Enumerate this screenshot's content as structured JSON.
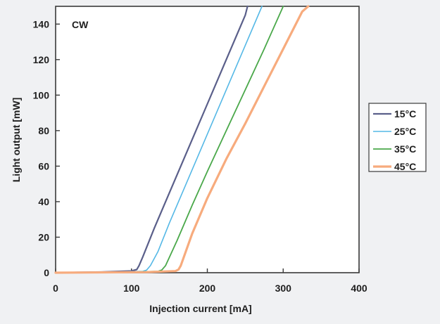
{
  "chart_data": {
    "type": "line",
    "title": "",
    "annotation": "CW",
    "xlabel": "Injection current [mA]",
    "ylabel": "Light output [mW]",
    "xlim": [
      0,
      400
    ],
    "ylim": [
      0,
      150
    ],
    "xticks": [
      "0",
      "100",
      "200",
      "300",
      "400"
    ],
    "yticks": [
      "0",
      "20",
      "40",
      "60",
      "80",
      "100",
      "120",
      "140"
    ],
    "grid": false,
    "legend_position": "right",
    "series": [
      {
        "name": "15°C",
        "color": "#5a5f8a",
        "x": [
          0,
          60,
          100,
          107,
          110,
          115,
          130,
          150,
          175,
          200,
          225,
          250,
          253
        ],
        "y": [
          0,
          0.4,
          1.0,
          1.8,
          4,
          9,
          25,
          45,
          70,
          95,
          120,
          145,
          150
        ]
      },
      {
        "name": "25°C",
        "color": "#55b8e6",
        "x": [
          0,
          80,
          115,
          120,
          125,
          135,
          150,
          175,
          200,
          225,
          250,
          272
        ],
        "y": [
          0,
          0.3,
          0.8,
          1.5,
          4,
          12,
          28,
          53,
          78,
          103,
          128,
          150
        ]
      },
      {
        "name": "35°C",
        "color": "#4aa84a",
        "x": [
          0,
          100,
          135,
          140,
          145,
          160,
          180,
          200,
          225,
          250,
          275,
          300
        ],
        "y": [
          0,
          0.3,
          0.8,
          1.5,
          4,
          18,
          38,
          57,
          80,
          103,
          126,
          150
        ]
      },
      {
        "name": "45°C",
        "color": "#f7ab7d",
        "x": [
          0,
          120,
          158,
          162,
          165,
          180,
          200,
          225,
          250,
          275,
          300,
          325,
          333
        ],
        "y": [
          0,
          0.3,
          0.9,
          1.8,
          4,
          22,
          42,
          64,
          84,
          105,
          126,
          147,
          150
        ]
      }
    ]
  }
}
